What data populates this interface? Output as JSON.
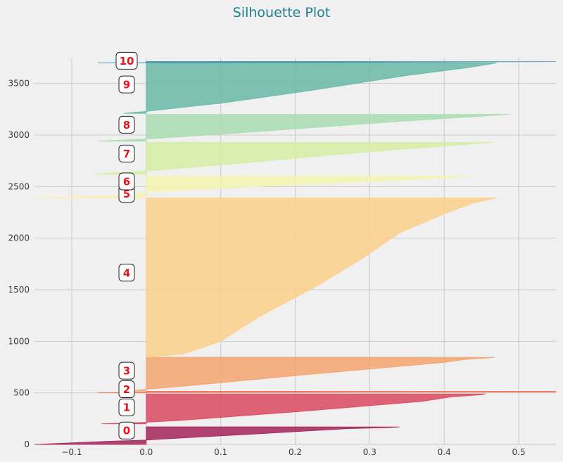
{
  "chart_data": {
    "type": "area",
    "title": "Silhouette Plot",
    "xlabel": "",
    "ylabel": "",
    "xlim": [
      -0.15,
      0.55
    ],
    "ylim": [
      0,
      3750
    ],
    "x_ticks": [
      -0.1,
      0.0,
      0.1,
      0.2,
      0.3,
      0.4,
      0.5
    ],
    "x_tick_labels": [
      "−0.1",
      "0.0",
      "0.1",
      "0.2",
      "0.3",
      "0.4",
      "0.5"
    ],
    "y_ticks": [
      0,
      500,
      1000,
      1500,
      2000,
      2500,
      3000,
      3500
    ],
    "y_tick_labels": [
      "0",
      "500",
      "1000",
      "1500",
      "2000",
      "2500",
      "3000",
      "3500"
    ],
    "grid": true,
    "clusters": [
      {
        "label": "0",
        "y_start": 0,
        "y_end": 170,
        "color": "#a5235a",
        "label_y": 135,
        "profile": [
          [
            0,
            -0.15
          ],
          [
            0.18,
            -0.05
          ],
          [
            0.25,
            0.0
          ],
          [
            0.3,
            0.02
          ],
          [
            0.6,
            0.15
          ],
          [
            0.9,
            0.27
          ],
          [
            0.97,
            0.33
          ],
          [
            1.0,
            0.34
          ]
        ]
      },
      {
        "label": "1",
        "y_start": 200,
        "y_end": 490,
        "color": "#d9495f",
        "label_y": 360,
        "profile": [
          [
            0,
            -0.06
          ],
          [
            0.05,
            0.0
          ],
          [
            0.12,
            0.05
          ],
          [
            0.4,
            0.2
          ],
          [
            0.75,
            0.37
          ],
          [
            0.9,
            0.41
          ],
          [
            0.97,
            0.45
          ],
          [
            1.0,
            0.456
          ]
        ]
      },
      {
        "label": "2",
        "y_start": 500,
        "y_end": 515,
        "color": "#ee6c4b",
        "label_y": 535,
        "profile": [
          [
            0,
            -0.065
          ],
          [
            0.3,
            0.0
          ],
          [
            0.6,
            0.55
          ],
          [
            1.0,
            0.55
          ]
        ]
      },
      {
        "label": "3",
        "y_start": 515,
        "y_end": 845,
        "color": "#f5a36f",
        "label_y": 715,
        "profile": [
          [
            0,
            -0.03
          ],
          [
            0.06,
            0.0
          ],
          [
            0.15,
            0.05
          ],
          [
            0.5,
            0.22
          ],
          [
            0.85,
            0.4
          ],
          [
            0.94,
            0.43
          ],
          [
            0.98,
            0.46
          ],
          [
            1.0,
            0.468
          ]
        ]
      },
      {
        "label": "4",
        "y_start": 845,
        "y_end": 2390,
        "color": "#fcd08a",
        "label_y": 1665,
        "profile": [
          [
            0,
            0.0
          ],
          [
            0.02,
            0.05
          ],
          [
            0.1,
            0.1
          ],
          [
            0.25,
            0.15
          ],
          [
            0.45,
            0.23
          ],
          [
            0.62,
            0.29
          ],
          [
            0.78,
            0.34
          ],
          [
            0.9,
            0.4
          ],
          [
            0.97,
            0.44
          ],
          [
            1.0,
            0.47
          ]
        ]
      },
      {
        "label": "5",
        "y_start": 2390,
        "y_end": 2430,
        "color": "#f9f0b4",
        "label_y": 2430,
        "profile": [
          [
            0,
            -0.15
          ],
          [
            0.4,
            -0.08
          ],
          [
            0.7,
            0.0
          ],
          [
            1.0,
            0.0
          ]
        ]
      },
      {
        "label": "6",
        "y_start": 2430,
        "y_end": 2600,
        "color": "#f5f5b0",
        "label_y": 2550,
        "profile": [
          [
            0,
            -0.02
          ],
          [
            0.1,
            0.0
          ],
          [
            0.35,
            0.12
          ],
          [
            0.7,
            0.3
          ],
          [
            0.95,
            0.42
          ],
          [
            1.0,
            0.435
          ]
        ]
      },
      {
        "label": "7",
        "y_start": 2620,
        "y_end": 2930,
        "color": "#d5eda4",
        "label_y": 2820,
        "profile": [
          [
            0,
            -0.072
          ],
          [
            0.1,
            0.0
          ],
          [
            0.35,
            0.13
          ],
          [
            0.7,
            0.3
          ],
          [
            0.9,
            0.41
          ],
          [
            0.97,
            0.45
          ],
          [
            1.0,
            0.465
          ]
        ]
      },
      {
        "label": "8",
        "y_start": 2940,
        "y_end": 3200,
        "color": "#a8dcb0",
        "label_y": 3100,
        "profile": [
          [
            0,
            -0.065
          ],
          [
            0.08,
            0.0
          ],
          [
            0.3,
            0.12
          ],
          [
            0.7,
            0.32
          ],
          [
            0.9,
            0.43
          ],
          [
            0.97,
            0.47
          ],
          [
            1.0,
            0.488
          ]
        ]
      },
      {
        "label": "9",
        "y_start": 3210,
        "y_end": 3700,
        "color": "#69b9a7",
        "label_y": 3490,
        "profile": [
          [
            0,
            -0.03
          ],
          [
            0.04,
            0.0
          ],
          [
            0.2,
            0.1
          ],
          [
            0.45,
            0.22
          ],
          [
            0.75,
            0.35
          ],
          [
            0.9,
            0.43
          ],
          [
            0.97,
            0.46
          ],
          [
            1.0,
            0.47
          ]
        ]
      },
      {
        "label": "10",
        "y_start": 3700,
        "y_end": 3712,
        "color": "#3e8fb0",
        "label_y": 3720,
        "profile": [
          [
            0,
            -0.065
          ],
          [
            0.5,
            0.3
          ],
          [
            1.0,
            0.55
          ]
        ]
      }
    ]
  }
}
